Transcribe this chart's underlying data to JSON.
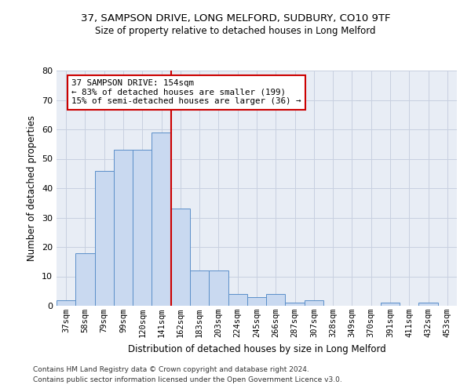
{
  "title1": "37, SAMPSON DRIVE, LONG MELFORD, SUDBURY, CO10 9TF",
  "title2": "Size of property relative to detached houses in Long Melford",
  "xlabel": "Distribution of detached houses by size in Long Melford",
  "ylabel": "Number of detached properties",
  "bar_labels": [
    "37sqm",
    "58sqm",
    "79sqm",
    "99sqm",
    "120sqm",
    "141sqm",
    "162sqm",
    "183sqm",
    "203sqm",
    "224sqm",
    "245sqm",
    "266sqm",
    "287sqm",
    "307sqm",
    "328sqm",
    "349sqm",
    "370sqm",
    "391sqm",
    "411sqm",
    "432sqm",
    "453sqm"
  ],
  "bar_values": [
    2,
    18,
    46,
    53,
    53,
    59,
    33,
    12,
    12,
    4,
    3,
    4,
    1,
    2,
    0,
    0,
    0,
    1,
    0,
    1,
    0
  ],
  "bar_color": "#c9d9f0",
  "bar_edgecolor": "#5b8fc9",
  "grid_color": "#c8d0e0",
  "background_color": "#e8edf5",
  "vline_x": 5.5,
  "vline_color": "#cc0000",
  "annotation_text": "37 SAMPSON DRIVE: 154sqm\n← 83% of detached houses are smaller (199)\n15% of semi-detached houses are larger (36) →",
  "annotation_box_edgecolor": "#cc0000",
  "ylim": [
    0,
    80
  ],
  "yticks": [
    0,
    10,
    20,
    30,
    40,
    50,
    60,
    70,
    80
  ],
  "footnote1": "Contains HM Land Registry data © Crown copyright and database right 2024.",
  "footnote2": "Contains public sector information licensed under the Open Government Licence v3.0."
}
